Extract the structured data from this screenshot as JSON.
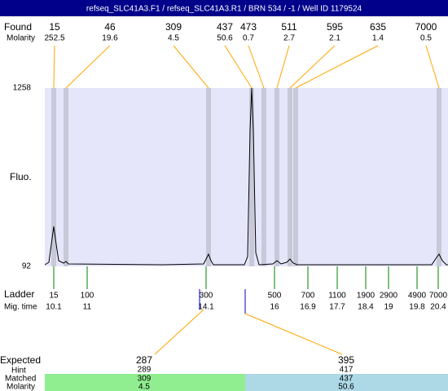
{
  "header": {
    "title": "refseq_SLC41A3.F1 / refseq_SLC41A3.R1 / BRN 534 / -1 / Well ID 1179524"
  },
  "labels": {
    "found": "Found",
    "molarity": "Molarity",
    "fluo": "Fluo.",
    "y_top": "1258",
    "y_bottom": "92",
    "ladder": "Ladder",
    "mig_time": "Mig. time",
    "expected": "Expected",
    "hint": "Hint",
    "matched": "Matched",
    "molarity2": "Molarity"
  },
  "found": [
    {
      "size": "15",
      "molarity": "252.5"
    },
    {
      "size": "46",
      "molarity": "19.6"
    },
    {
      "size": "309",
      "molarity": "4.5"
    },
    {
      "size": "437",
      "molarity": "50.6"
    },
    {
      "size": "473",
      "molarity": "0.7"
    },
    {
      "size": "511",
      "molarity": "2.7"
    },
    {
      "size": "595",
      "molarity": "2.1"
    },
    {
      "size": "635",
      "molarity": "1.4"
    },
    {
      "size": "7000",
      "molarity": "0.5"
    }
  ],
  "ladder": [
    {
      "size": "15",
      "time": "10.1"
    },
    {
      "size": "100",
      "time": "11"
    },
    {
      "size": "300",
      "time": "14.1"
    },
    {
      "size": "500",
      "time": "16"
    },
    {
      "size": "700",
      "time": "16.9"
    },
    {
      "size": "1100",
      "time": "17.7"
    },
    {
      "size": "1900",
      "time": "18.4"
    },
    {
      "size": "2900",
      "time": "19"
    },
    {
      "size": "4900",
      "time": "19.8"
    },
    {
      "size": "7000",
      "time": "20.4"
    }
  ],
  "expected": [
    {
      "expected": "287",
      "hint": "289",
      "matched": "309",
      "molarity": "4.5"
    },
    {
      "expected": "395",
      "hint": "417",
      "matched": "437",
      "molarity": "50.6"
    }
  ]
}
